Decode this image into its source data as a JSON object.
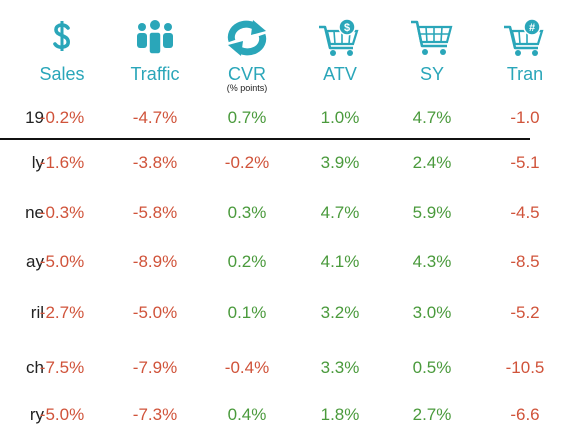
{
  "colors": {
    "teal": "#2aa6b9",
    "negative": "#d0533a",
    "positive": "#4a9a3c",
    "text": "#222222"
  },
  "columns": [
    {
      "icon": "dollar-sign-icon",
      "label": "Sales",
      "sublabel": ""
    },
    {
      "icon": "people-group-icon",
      "label": "Traffic",
      "sublabel": ""
    },
    {
      "icon": "refresh-arrows-icon",
      "label": "CVR",
      "sublabel": "(% points)"
    },
    {
      "icon": "cart-dollar-icon",
      "label": "ATV",
      "sublabel": ""
    },
    {
      "icon": "shopping-cart-icon",
      "label": "SY",
      "sublabel": ""
    },
    {
      "icon": "cart-hash-icon",
      "label": "Tran",
      "sublabel": ""
    }
  ],
  "rows": [
    {
      "label": "19",
      "values": [
        "-0.2%",
        "-4.7%",
        "0.7%",
        "1.0%",
        "4.7%",
        "-1.0"
      ]
    },
    {
      "label": "ly",
      "values": [
        "-1.6%",
        "-3.8%",
        "-0.2%",
        "3.9%",
        "2.4%",
        "-5.1"
      ]
    },
    {
      "label": "ne",
      "values": [
        "-0.3%",
        "-5.8%",
        "0.3%",
        "4.7%",
        "5.9%",
        "-4.5"
      ]
    },
    {
      "label": "ay",
      "values": [
        "-5.0%",
        "-8.9%",
        "0.2%",
        "4.1%",
        "4.3%",
        "-8.5"
      ]
    },
    {
      "label": "ril",
      "values": [
        "-2.7%",
        "-5.0%",
        "0.1%",
        "3.2%",
        "3.0%",
        "-5.2"
      ]
    },
    {
      "label": "ch",
      "values": [
        "-7.5%",
        "-7.9%",
        "-0.4%",
        "3.3%",
        "0.5%",
        "-10.5"
      ]
    },
    {
      "label": "ry",
      "values": [
        "-5.0%",
        "-7.3%",
        "0.4%",
        "1.8%",
        "2.7%",
        "-6.6"
      ]
    }
  ]
}
